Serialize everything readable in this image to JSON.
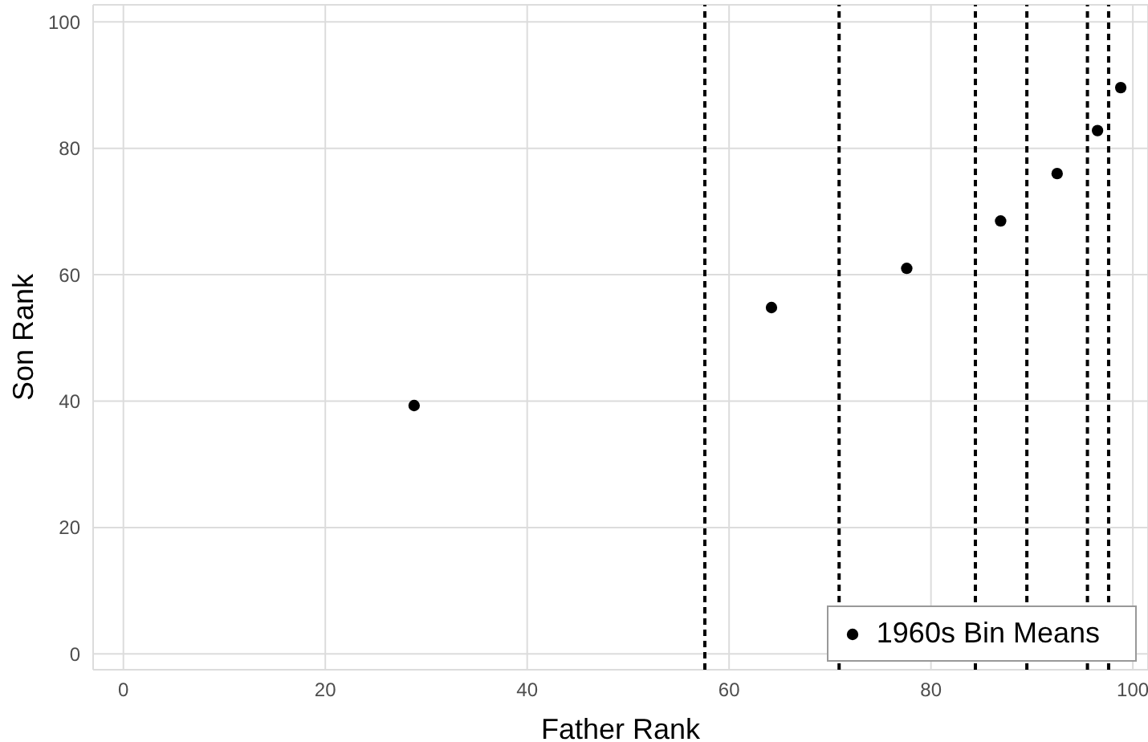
{
  "chart_data": {
    "type": "scatter",
    "xlabel": "Father Rank",
    "ylabel": "Son Rank",
    "xlim": [
      -3,
      101.5
    ],
    "ylim": [
      -2.5,
      102.7
    ],
    "xticks": [
      0,
      20,
      40,
      60,
      80,
      100
    ],
    "yticks": [
      0,
      20,
      40,
      60,
      80,
      100
    ],
    "grid": true,
    "legend": "bottom right",
    "marker": "circle",
    "series": [
      {
        "name": "1960s Bin Means",
        "color": "#000000",
        "x": [
          28.8,
          64.2,
          77.6,
          86.9,
          92.5,
          96.5,
          98.8
        ],
        "values": [
          39.3,
          54.8,
          61.0,
          68.5,
          76.0,
          82.8,
          89.6
        ]
      }
    ],
    "ref_lines": [
      {
        "axis": "x",
        "value": 57.6,
        "color": "#000000",
        "line_style": "dashed"
      },
      {
        "axis": "x",
        "value": 70.9,
        "color": "#000000",
        "line_style": "dashed"
      },
      {
        "axis": "x",
        "value": 84.4,
        "color": "#000000",
        "line_style": "dashed"
      },
      {
        "axis": "x",
        "value": 89.5,
        "color": "#000000",
        "line_style": "dashed"
      },
      {
        "axis": "x",
        "value": 95.5,
        "color": "#000000",
        "line_style": "dashed"
      },
      {
        "axis": "x",
        "value": 97.6,
        "color": "#000000",
        "line_style": "dashed"
      }
    ]
  }
}
